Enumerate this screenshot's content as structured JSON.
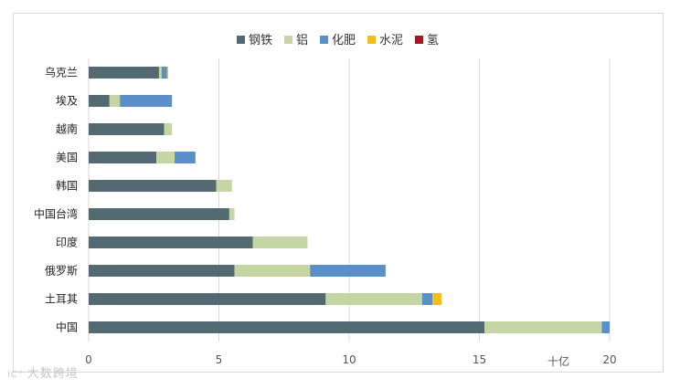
{
  "chart_data": {
    "type": "bar",
    "orientation": "horizontal",
    "stacked": true,
    "categories": [
      "乌克兰",
      "埃及",
      "越南",
      "美国",
      "韩国",
      "中国台湾",
      "印度",
      "俄罗斯",
      "土耳其",
      "中国"
    ],
    "series": [
      {
        "name": "钢铁",
        "color": "#546a72",
        "values": [
          2.7,
          0.8,
          2.9,
          2.6,
          4.9,
          5.4,
          6.3,
          5.6,
          9.1,
          15.2
        ]
      },
      {
        "name": "铝",
        "color": "#c5d5a3",
        "values": [
          0.1,
          0.4,
          0.3,
          0.7,
          0.6,
          0.2,
          2.1,
          2.9,
          3.7,
          4.5
        ]
      },
      {
        "name": "化肥",
        "color": "#5b8fc7",
        "values": [
          0.2,
          2.0,
          0.0,
          0.8,
          0.0,
          0.0,
          0.0,
          2.9,
          0.4,
          0.3
        ]
      },
      {
        "name": "水泥",
        "color": "#f2bf1a",
        "values": [
          0.05,
          0.0,
          0.0,
          0.0,
          0.0,
          0.0,
          0.0,
          0.0,
          0.35,
          0.0
        ]
      },
      {
        "name": "氢",
        "color": "#9e1b22",
        "values": [
          0.0,
          0.0,
          0.0,
          0.0,
          0.0,
          0.0,
          0.0,
          0.0,
          0.0,
          0.0
        ]
      }
    ],
    "xlim": [
      0,
      20
    ],
    "xticks": [
      "0",
      "5",
      "10",
      "15",
      "20"
    ],
    "unit_label": "十亿",
    "legend_position": "top",
    "grid": true
  },
  "watermark": {
    "icon": "iC°",
    "text": "大数跨境"
  }
}
